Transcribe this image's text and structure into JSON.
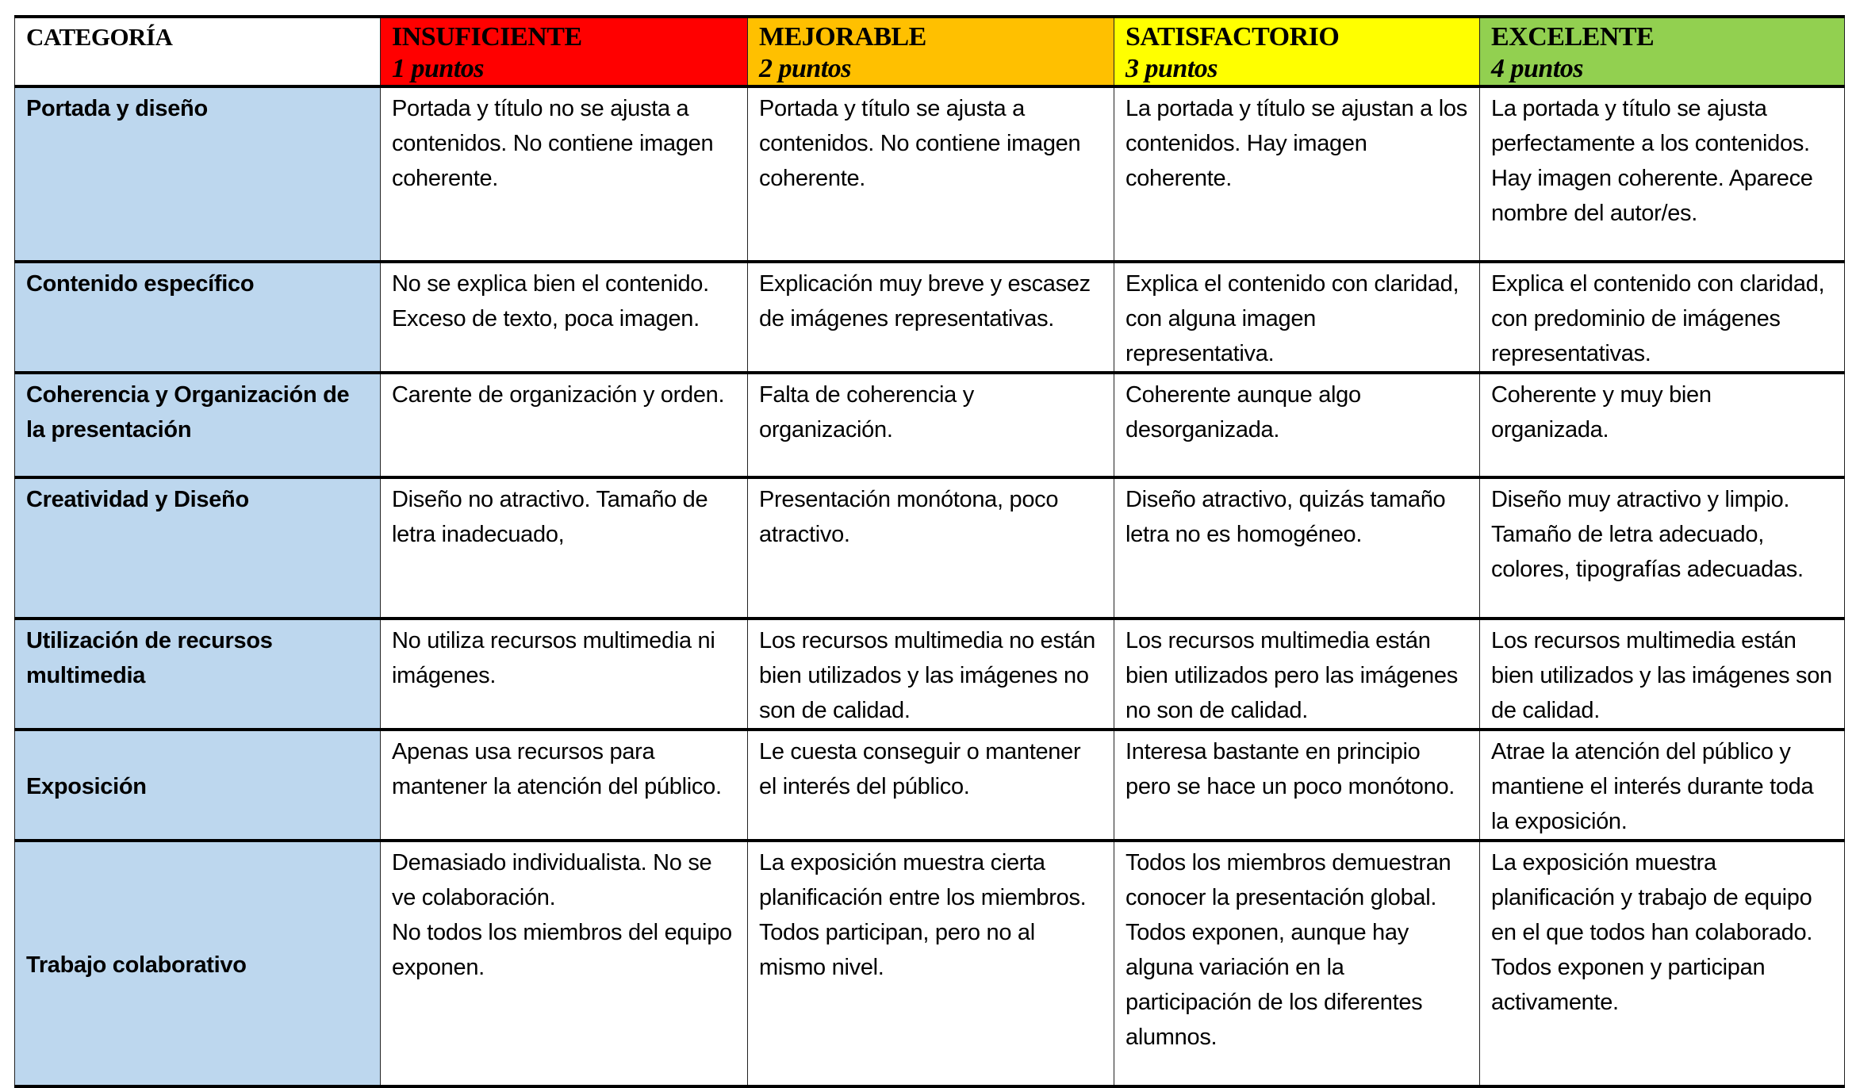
{
  "header": {
    "category_label": "CATEGORÍA",
    "levels": [
      {
        "label": "INSUFICIENTE",
        "points": "1 puntos",
        "color": "#FF0000"
      },
      {
        "label": "MEJORABLE",
        "points": "2 puntos",
        "color": "#FFC000"
      },
      {
        "label": "SATISFACTORIO",
        "points": "3 puntos",
        "color": "#FFFF00"
      },
      {
        "label": "EXCELENTE",
        "points": "4 puntos",
        "color": "#92D050"
      }
    ]
  },
  "category_color": "#BDD7EE",
  "rows": [
    {
      "category": "Portada y diseño",
      "cells": [
        "Portada y título no se ajusta a contenidos. No contiene imagen coherente.",
        "Portada y título se ajusta a contenidos. No contiene imagen coherente.",
        "La portada y título se ajustan a los contenidos. Hay imagen coherente.",
        "La portada y título se ajusta perfectamente a los contenidos. Hay imagen coherente. Aparece nombre del autor/es."
      ]
    },
    {
      "category": "Contenido específico",
      "cells": [
        "No se explica bien el contenido. Exceso de texto, poca imagen.",
        "Explicación muy breve y escasez de imágenes representativas.",
        "Explica el contenido con claridad, con alguna imagen representativa.",
        "Explica el contenido con claridad, con predominio de imágenes representativas."
      ]
    },
    {
      "category": "Coherencia y Organización de la presentación",
      "cells": [
        "Carente de organización y orden.",
        "Falta de coherencia y organización.",
        "Coherente aunque algo desorganizada.",
        "Coherente y muy bien organizada."
      ]
    },
    {
      "category": "Creatividad y Diseño",
      "cells": [
        "Diseño no atractivo. Tamaño de letra inadecuado,",
        "Presentación monótona, poco atractivo.",
        "Diseño atractivo, quizás tamaño letra no es homogéneo.",
        "Diseño muy atractivo y limpio. Tamaño de letra adecuado, colores, tipografías adecuadas."
      ]
    },
    {
      "category": "Utilización de recursos multimedia",
      "cells": [
        "No utiliza recursos multimedia ni imágenes.",
        "Los recursos multimedia no están bien utilizados y las imágenes no son de calidad.",
        "Los recursos multimedia están bien utilizados pero las imágenes no son de calidad.",
        "Los recursos multimedia están bien utilizados y las imágenes son de calidad."
      ]
    },
    {
      "category": "Exposición",
      "cells": [
        "Apenas usa recursos para mantener la atención del público.",
        "Le cuesta conseguir o mantener el interés del público.",
        "Interesa bastante en principio pero se hace un poco monótono.",
        "Atrae la atención del público y mantiene el interés durante toda la exposición."
      ]
    },
    {
      "category": "Trabajo colaborativo",
      "cells": [
        [
          "Demasiado individualista. No se ve colaboración.",
          "No todos los miembros del equipo exponen."
        ],
        [
          "La exposición muestra cierta planificación entre los miembros.",
          "Todos participan, pero no al mismo nivel."
        ],
        [
          "Todos los miembros demuestran conocer la presentación global.",
          "Todos exponen, aunque hay alguna variación en la participación de los diferentes alumnos."
        ],
        [
          "La exposición muestra planificación y trabajo de equipo en el que todos han colaborado.",
          "Todos exponen y participan activamente."
        ]
      ]
    }
  ]
}
